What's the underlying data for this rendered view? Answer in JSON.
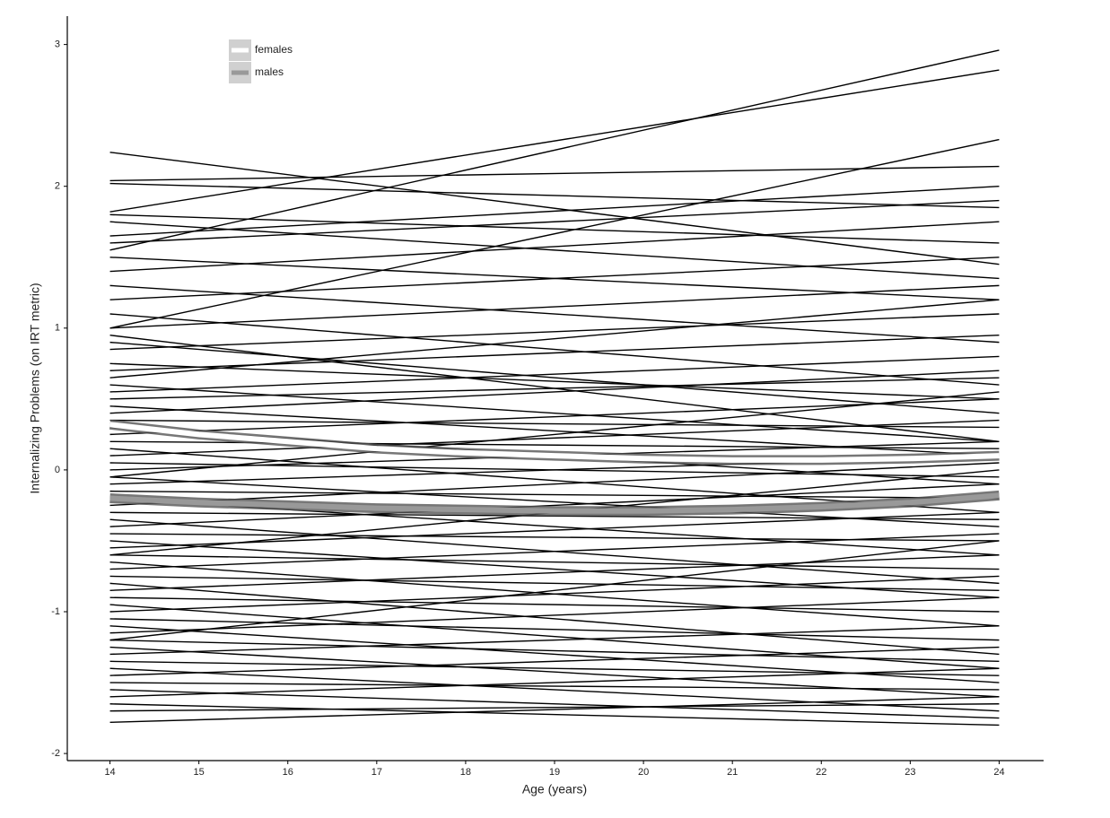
{
  "chart_data": {
    "type": "line",
    "x_label": "Age (years)",
    "y_label": "Internalizing Problems (on IRT metric)",
    "x": [
      14,
      15,
      16,
      17,
      18,
      19,
      20,
      21,
      22,
      23,
      24
    ],
    "series": [
      {
        "name": "females",
        "color": "#ffffff",
        "values": [
          0.32,
          0.25,
          0.2,
          0.15,
          0.12,
          0.1,
          0.08,
          0.07,
          0.07,
          0.08,
          0.1
        ]
      },
      {
        "name": "males",
        "color": "#999999",
        "values": [
          -0.2,
          -0.23,
          -0.25,
          -0.27,
          -0.28,
          -0.29,
          -0.29,
          -0.28,
          -0.26,
          -0.23,
          -0.18
        ]
      }
    ],
    "trajectories": {
      "x": [
        14,
        24
      ],
      "color": "#000000",
      "lines": [
        [
          2.24,
          1.45
        ],
        [
          2.04,
          2.14
        ],
        [
          2.02,
          1.85
        ],
        [
          1.82,
          2.82
        ],
        [
          1.55,
          2.96
        ],
        [
          1.0,
          2.33
        ],
        [
          1.8,
          1.6
        ],
        [
          1.65,
          2.0
        ],
        [
          1.5,
          1.2
        ],
        [
          1.4,
          1.75
        ],
        [
          1.3,
          0.9
        ],
        [
          1.2,
          1.5
        ],
        [
          1.1,
          0.6
        ],
        [
          1.0,
          1.3
        ],
        [
          0.9,
          0.4
        ],
        [
          0.85,
          1.1
        ],
        [
          0.75,
          0.5
        ],
        [
          0.7,
          0.95
        ],
        [
          0.6,
          0.2
        ],
        [
          0.55,
          0.8
        ],
        [
          0.5,
          0.65
        ],
        [
          0.45,
          0.1
        ],
        [
          0.4,
          0.7
        ],
        [
          0.35,
          0.3
        ],
        [
          0.3,
          -0.1
        ],
        [
          0.25,
          0.5
        ],
        [
          0.2,
          0.15
        ],
        [
          0.15,
          -0.3
        ],
        [
          0.1,
          0.35
        ],
        [
          0.05,
          -0.05
        ],
        [
          0,
          0.2
        ],
        [
          -0.05,
          -0.4
        ],
        [
          -0.1,
          0.1
        ],
        [
          -0.15,
          -0.2
        ],
        [
          -0.2,
          -0.6
        ],
        [
          -0.25,
          0.05
        ],
        [
          -0.3,
          -0.35
        ],
        [
          -0.35,
          -0.8
        ],
        [
          -0.4,
          -0.1
        ],
        [
          -0.45,
          -0.5
        ],
        [
          -0.5,
          -0.9
        ],
        [
          -0.55,
          -0.3
        ],
        [
          -0.6,
          -0.7
        ],
        [
          -0.65,
          -1.1
        ],
        [
          -0.7,
          -0.45
        ],
        [
          -0.75,
          -0.85
        ],
        [
          -0.8,
          -1.3
        ],
        [
          -0.85,
          -0.6
        ],
        [
          -0.9,
          -1.0
        ],
        [
          -0.95,
          -1.4
        ],
        [
          -1.0,
          -0.75
        ],
        [
          -1.05,
          -1.2
        ],
        [
          -1.1,
          -1.5
        ],
        [
          -1.15,
          -0.9
        ],
        [
          -1.2,
          -1.35
        ],
        [
          -1.25,
          -1.6
        ],
        [
          -1.3,
          -1.1
        ],
        [
          -1.35,
          -1.45
        ],
        [
          -1.4,
          -1.7
        ],
        [
          -1.45,
          -1.25
        ],
        [
          -1.5,
          -1.55
        ],
        [
          -1.55,
          -1.75
        ],
        [
          -1.6,
          -1.4
        ],
        [
          -1.65,
          -1.8
        ],
        [
          -1.7,
          -1.65
        ],
        [
          -1.78,
          -1.6
        ],
        [
          1.6,
          1.9
        ],
        [
          1.75,
          1.35
        ],
        [
          0.95,
          0.2
        ],
        [
          0.65,
          1.2
        ],
        [
          -0.05,
          0.55
        ],
        [
          -0.6,
          0.0
        ],
        [
          -1.2,
          -0.5
        ]
      ]
    },
    "xlim": [
      13.52,
      24.5
    ],
    "ylim": [
      -2.05,
      3.2
    ],
    "xticks": [
      14,
      15,
      16,
      17,
      18,
      19,
      20,
      21,
      22,
      23,
      24
    ],
    "yticks": [
      -2,
      -1,
      0,
      1,
      2,
      3
    ],
    "legend": "top-left"
  }
}
